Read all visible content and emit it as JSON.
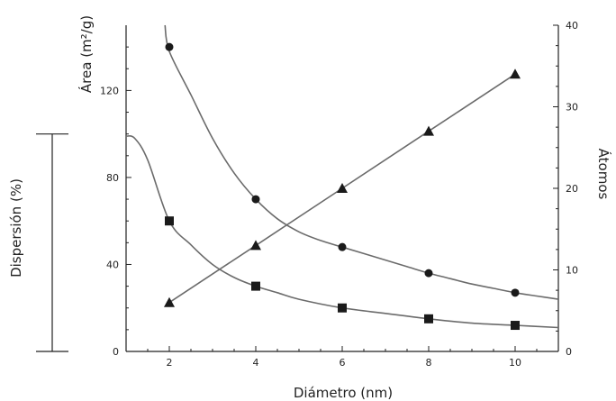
{
  "chart_data": {
    "type": "line",
    "xlabel": "Diámetro (nm)",
    "ylabel_left": "Área (m²/g)",
    "ylabel_right": "Átomos",
    "scale_bar_label": "Dispersión (%)",
    "xlim": [
      1,
      11
    ],
    "ylim_left": [
      0,
      150
    ],
    "ylim_right": [
      0,
      40
    ],
    "x_ticks": [
      2,
      4,
      6,
      8,
      10
    ],
    "y_left_ticks": [
      0,
      40,
      80,
      120
    ],
    "y_right_ticks": [
      0,
      10,
      20,
      30,
      40
    ],
    "grid": false,
    "series": [
      {
        "marker": "circle",
        "axis": "left",
        "x": [
          2,
          4,
          6,
          8,
          10
        ],
        "values": [
          140,
          70,
          48,
          36,
          27
        ],
        "curve_x": [
          1.9,
          2,
          2.5,
          3,
          3.5,
          4,
          4.5,
          5,
          5.5,
          6,
          6.5,
          7,
          7.5,
          8,
          8.5,
          9,
          9.5,
          10,
          10.5,
          11
        ],
        "curve_y": [
          150,
          138,
          118,
          98,
          82,
          70,
          61,
          55,
          51,
          48,
          45,
          42,
          39,
          36,
          33.5,
          31,
          29,
          27,
          25.5,
          24
        ]
      },
      {
        "marker": "square",
        "axis": "left",
        "x": [
          2,
          4,
          6,
          8,
          10
        ],
        "values": [
          60,
          30,
          20,
          15,
          12
        ],
        "curve_x": [
          1,
          1.2,
          1.5,
          2,
          2.5,
          3,
          3.5,
          4,
          4.5,
          5,
          6,
          7,
          8,
          9,
          10,
          11
        ],
        "curve_y": [
          99,
          98,
          88,
          60,
          49,
          40,
          34,
          30,
          27,
          24,
          20,
          17.5,
          15,
          13,
          12,
          11
        ]
      },
      {
        "marker": "triangle",
        "axis": "right",
        "x": [
          2,
          4,
          6,
          8,
          10
        ],
        "values": [
          6,
          13,
          20,
          27,
          34
        ],
        "curve_x": [
          2,
          4,
          6,
          8,
          10
        ],
        "curve_y": [
          6,
          13,
          20,
          27,
          34
        ]
      }
    ],
    "scale_bar": {
      "from": 0,
      "to": 100,
      "axis": "left"
    }
  }
}
